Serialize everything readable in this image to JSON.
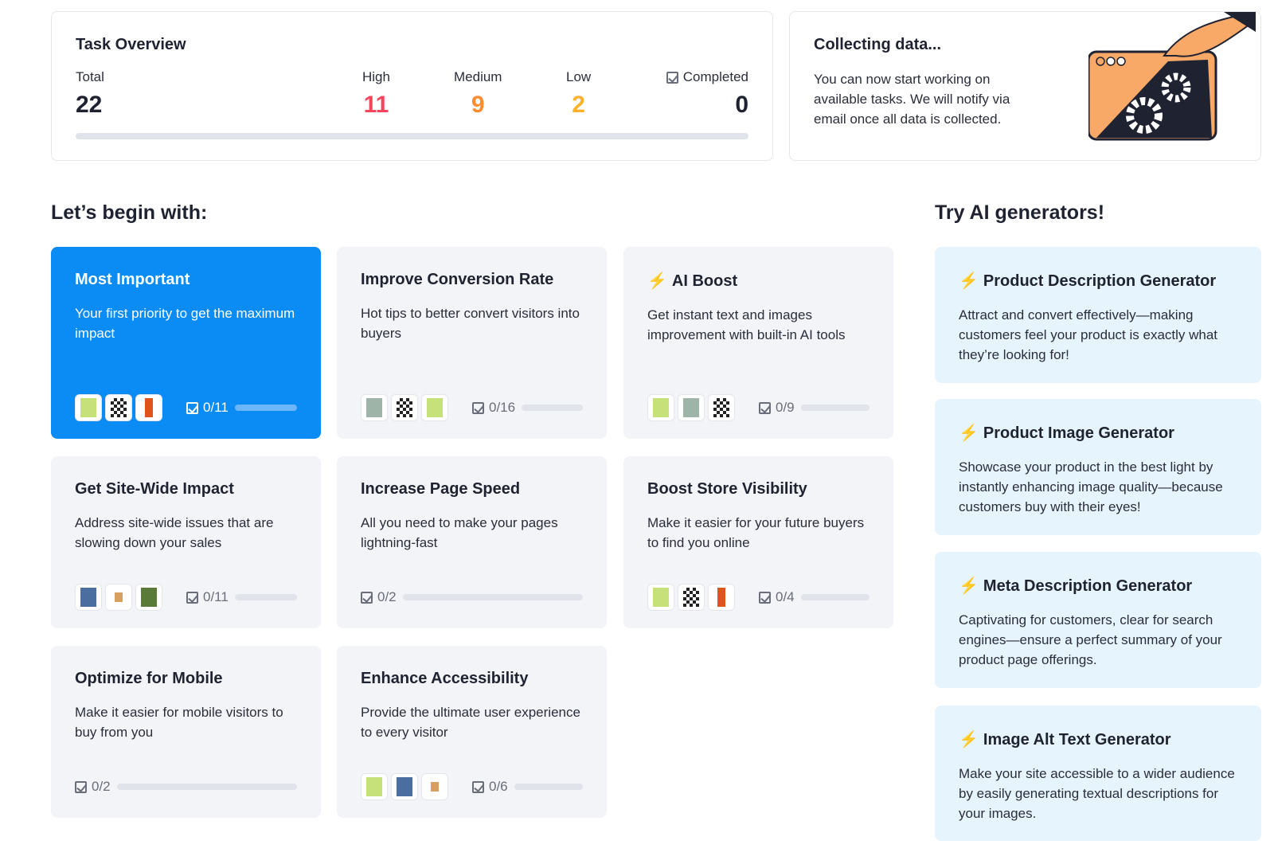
{
  "overview": {
    "title": "Task Overview",
    "total_label": "Total",
    "total": "22",
    "high_label": "High",
    "high": "11",
    "medium_label": "Medium",
    "medium": "9",
    "low_label": "Low",
    "low": "2",
    "completed_label": "Completed",
    "completed": "0",
    "colors": {
      "high": "#f5455c",
      "medium": "#ff8c2e",
      "low": "#ffb12a"
    }
  },
  "collecting": {
    "title": "Collecting data...",
    "text": "You can now start working on available tasks. We will notify via email once all data is collected.",
    "illustration": "gears-browser-illustration"
  },
  "begin": {
    "title": "Let’s begin with:",
    "cards": [
      {
        "title": "Most Important",
        "desc": "Your first priority to get the maximum impact",
        "count": "0/11",
        "progress": 0,
        "thumbs": [
          "green",
          "checker",
          "orange"
        ]
      },
      {
        "title": "Improve Conversion Rate",
        "desc": "Hot tips to better convert visitors into buyers",
        "count": "0/16",
        "progress": 0,
        "thumbs": [
          "room",
          "checker",
          "green"
        ]
      },
      {
        "title": "AI Boost",
        "desc": "Get instant text and images improvement with built-in AI tools",
        "count": "0/9",
        "progress": 0,
        "thumbs": [
          "green",
          "room",
          "checker"
        ]
      },
      {
        "title": "Get Site-Wide Impact",
        "desc": "Address site-wide issues that are slowing down your sales",
        "count": "0/11",
        "progress": 0,
        "thumbs": [
          "blue",
          "cup",
          "plant"
        ]
      },
      {
        "title": "Increase Page Speed",
        "desc": "All you need to make your pages lightning-fast",
        "count": "0/2",
        "progress": 0,
        "thumbs": []
      },
      {
        "title": "Boost Store Visibility",
        "desc": "Make it easier for your future buyers to find you online",
        "count": "0/4",
        "progress": 0,
        "thumbs": [
          "green",
          "checker",
          "orange"
        ]
      },
      {
        "title": "Optimize for Mobile",
        "desc": "Make it easier for mobile visitors to buy from you",
        "count": "0/2",
        "progress": 0,
        "thumbs": []
      },
      {
        "title": "Enhance Accessibility",
        "desc": "Provide the ultimate user experience to every visitor",
        "count": "0/6",
        "progress": 0,
        "thumbs": [
          "green",
          "blue",
          "cup"
        ]
      }
    ]
  },
  "ai": {
    "title": "Try AI generators!",
    "items": [
      {
        "title": "Product Description Generator",
        "desc": "Attract and convert effectively—making customers feel your product is exactly what they’re looking for!"
      },
      {
        "title": "Product Image Generator",
        "desc": "Showcase your product in the best light by instantly enhancing image quality—because customers buy with their eyes!"
      },
      {
        "title": "Meta Description Generator",
        "desc": "Captivating for customers, clear for search engines—ensure a perfect summary of your product page offerings."
      },
      {
        "title": "Image Alt Text Generator",
        "desc": "Make your site accessible to a wider audience by easily generating textual descriptions for your images."
      }
    ]
  }
}
